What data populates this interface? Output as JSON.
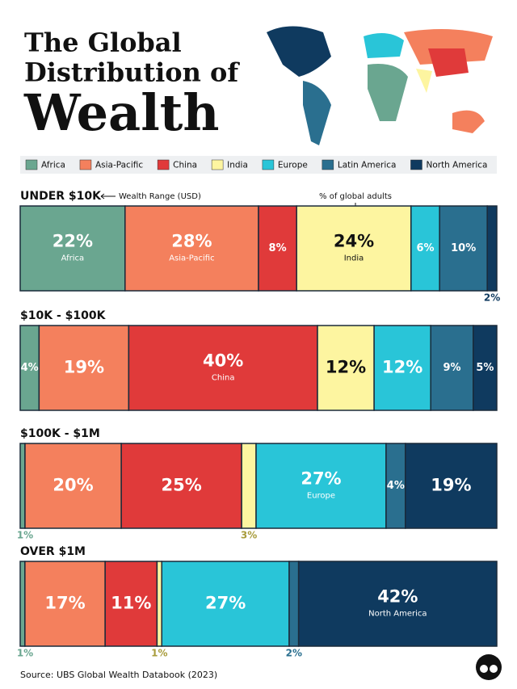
{
  "chart_data": {
    "type": "stacked-bar-horizontal",
    "title_lines": [
      "The Global",
      "Distribution of",
      "Wealth"
    ],
    "annotations": [
      "Wealth Range (USD)",
      "% of global adults"
    ],
    "source": "Source: UBS Global Wealth Databook (2023)",
    "categories": [
      "UNDER $10K",
      "$10K - $100K",
      "$100K - $1M",
      "OVER $1M"
    ],
    "series": [
      {
        "name": "Africa",
        "color": "#6aa690",
        "values": [
          22,
          4,
          1,
          1
        ],
        "value_labels": [
          "22%",
          "4%",
          "1%",
          "1%"
        ],
        "segment_labels": [
          "Africa",
          null,
          null,
          null
        ]
      },
      {
        "name": "Asia-Pacific",
        "color": "#f4805d",
        "values": [
          28,
          19,
          20,
          17
        ],
        "value_labels": [
          "28%",
          "19%",
          "20%",
          "17%"
        ],
        "segment_labels": [
          "Asia-Pacific",
          null,
          null,
          null
        ]
      },
      {
        "name": "China",
        "color": "#e03a3a",
        "values": [
          8,
          40,
          25,
          11
        ],
        "value_labels": [
          "8%",
          "40%",
          "25%",
          "11%"
        ],
        "segment_labels": [
          null,
          "China",
          null,
          null
        ]
      },
      {
        "name": "India",
        "color": "#fdf5a0",
        "values": [
          24,
          12,
          3,
          1
        ],
        "value_labels": [
          "24%",
          "12%",
          "3%",
          "1%"
        ],
        "segment_labels": [
          "India",
          null,
          null,
          null
        ]
      },
      {
        "name": "Europe",
        "color": "#29c5d8",
        "values": [
          6,
          12,
          27,
          27
        ],
        "value_labels": [
          "6%",
          "12%",
          "27%",
          "27%"
        ],
        "segment_labels": [
          null,
          null,
          "Europe",
          null
        ]
      },
      {
        "name": "Latin America",
        "color": "#2a6f8f",
        "values": [
          10,
          9,
          4,
          2
        ],
        "value_labels": [
          "10%",
          "9%",
          "4%",
          "2%"
        ],
        "segment_labels": [
          null,
          null,
          null,
          null
        ]
      },
      {
        "name": "North America",
        "color": "#0f3a5f",
        "values": [
          2,
          5,
          19,
          42
        ],
        "value_labels": [
          "2%",
          "5%",
          "19%",
          "42%"
        ],
        "segment_labels": [
          null,
          null,
          null,
          "North America"
        ]
      }
    ]
  }
}
